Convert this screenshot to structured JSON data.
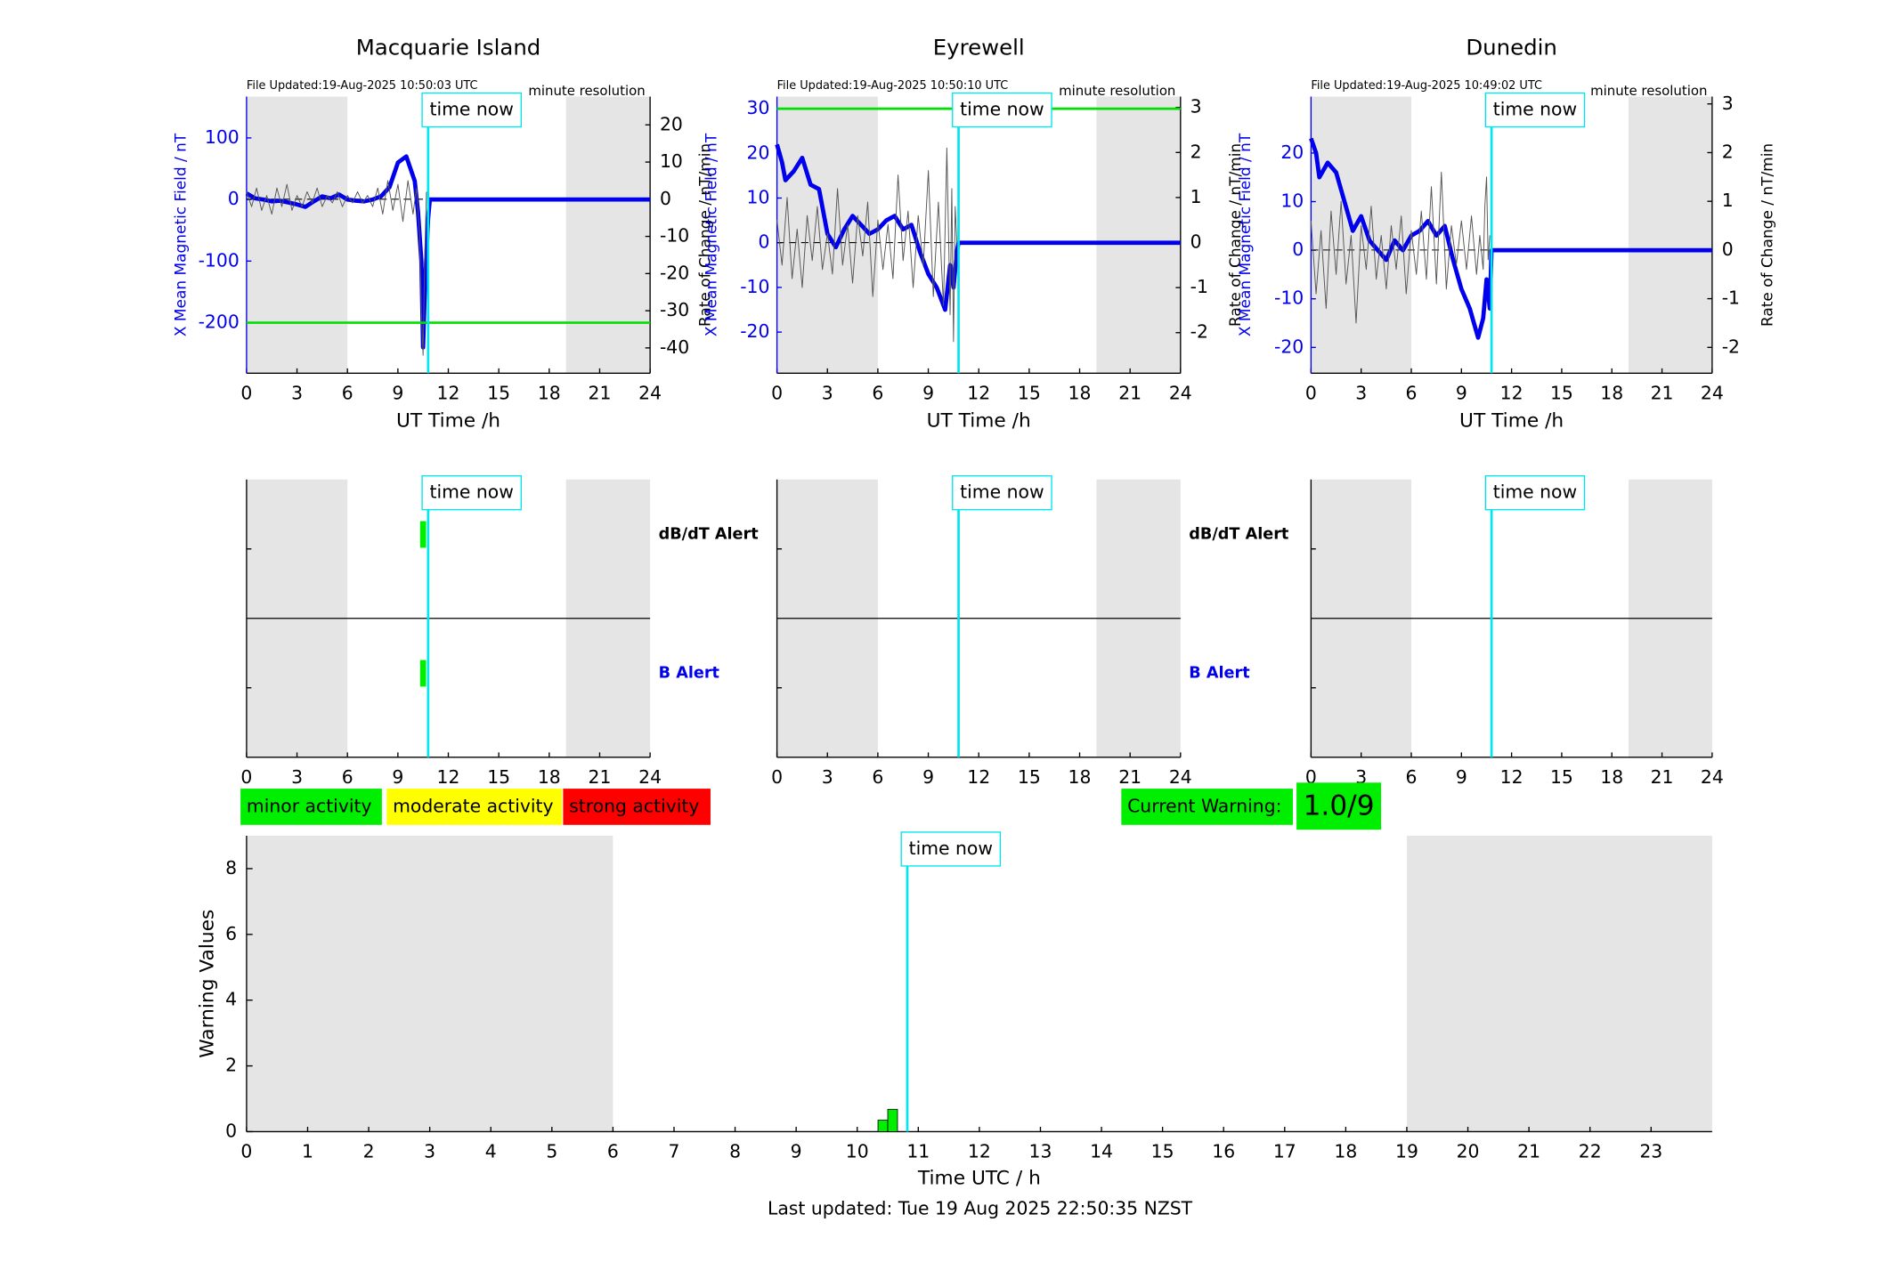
{
  "chart_data": [
    {
      "type": "line",
      "title": "Macquarie Island",
      "file_updated": "File Updated:19-Aug-2025 10:50:03 UTC",
      "resolution": "minute resolution",
      "ylabel": "X Mean Magnetic Field / nT",
      "y2label": "Rate of Change / nT/min",
      "xlabel": "UT Time /h",
      "xlim": [
        0,
        24
      ],
      "xticks": [
        0,
        3,
        6,
        9,
        12,
        15,
        18,
        21,
        24
      ],
      "ylim": [
        -282,
        167
      ],
      "yticks": [
        -200,
        -100,
        0,
        100
      ],
      "y2lim": [
        -46.8,
        27.6
      ],
      "y2ticks": [
        -40,
        -30,
        -20,
        -10,
        0,
        10,
        20
      ],
      "shade": [
        [
          0,
          6
        ],
        [
          19,
          24
        ]
      ],
      "threshold": -200,
      "threshold_color": "#00e000",
      "time_now": 10.8,
      "time_now_label": "time now",
      "series": [
        {
          "color": "#0000ee",
          "x": [
            0,
            0.5,
            1,
            1.5,
            2,
            2.5,
            3,
            3.5,
            4,
            4.5,
            5,
            5.5,
            6,
            6.5,
            7,
            7.5,
            8,
            8.5,
            9,
            9.5,
            10,
            10.2,
            10.4,
            10.5,
            10.6,
            10.8,
            10.9,
            24
          ],
          "values": [
            10,
            2,
            0,
            -3,
            -2,
            -5,
            -8,
            -12,
            -3,
            5,
            2,
            8,
            0,
            -2,
            -3,
            0,
            5,
            20,
            60,
            70,
            30,
            -20,
            -100,
            -240,
            -150,
            -30,
            0,
            0
          ]
        },
        {
          "color": "#555555",
          "axis": "y2",
          "x": [
            0,
            0.3,
            0.6,
            0.9,
            1.2,
            1.5,
            1.8,
            2.1,
            2.4,
            2.7,
            3,
            3.3,
            3.6,
            3.9,
            4.2,
            4.5,
            4.8,
            5.1,
            5.4,
            5.7,
            6,
            6.3,
            6.6,
            6.9,
            7.2,
            7.5,
            7.8,
            8.1,
            8.4,
            8.7,
            9,
            9.3,
            9.6,
            9.9,
            10.1,
            10.3,
            10.4,
            10.5,
            10.6,
            10.7
          ],
          "values": [
            2,
            -2,
            3,
            -3,
            1,
            -4,
            3,
            -2,
            4,
            -3,
            1,
            -2,
            2,
            -1,
            3,
            -2,
            1,
            -1,
            2,
            -2,
            1,
            -1,
            2,
            -1,
            1,
            -2,
            3,
            -4,
            5,
            -3,
            4,
            -6,
            5,
            -4,
            3,
            -10,
            -30,
            -42,
            -15,
            2
          ]
        }
      ]
    },
    {
      "type": "line",
      "title": "Eyrewell",
      "file_updated": "File Updated:19-Aug-2025 10:50:10 UTC",
      "resolution": "minute resolution",
      "ylabel": "X Mean Magnetic Field / nT",
      "y2label": "Rate of Change / nT/min",
      "xlabel": "UT Time /h",
      "xlim": [
        0,
        24
      ],
      "xticks": [
        0,
        3,
        6,
        9,
        12,
        15,
        18,
        21,
        24
      ],
      "ylim": [
        -29.2,
        32.7
      ],
      "yticks": [
        -20,
        -10,
        0,
        10,
        20,
        30
      ],
      "y2lim": [
        -2.9,
        3.24
      ],
      "y2ticks": [
        -2,
        -1,
        0,
        1,
        2,
        3
      ],
      "shade": [
        [
          0,
          6
        ],
        [
          19,
          24
        ]
      ],
      "threshold": 30,
      "threshold_color": "#00e000",
      "time_now": 10.8,
      "time_now_label": "time now",
      "series": [
        {
          "color": "#0000ee",
          "x": [
            0,
            0.3,
            0.5,
            1,
            1.5,
            2,
            2.5,
            3,
            3.5,
            4,
            4.5,
            5,
            5.5,
            6,
            6.5,
            7,
            7.5,
            8,
            8.5,
            9,
            9.5,
            10,
            10.3,
            10.5,
            10.7,
            10.8,
            24
          ],
          "values": [
            22,
            18,
            14,
            16,
            19,
            13,
            12,
            2,
            -1,
            3,
            6,
            4,
            2,
            3,
            5,
            6,
            3,
            4,
            -2,
            -7,
            -10,
            -15,
            -5,
            -10,
            -2,
            0,
            0
          ]
        },
        {
          "color": "#555555",
          "axis": "y2",
          "x": [
            0,
            0.3,
            0.6,
            0.9,
            1.2,
            1.5,
            1.8,
            2.1,
            2.4,
            2.7,
            3,
            3.3,
            3.6,
            3.9,
            4.2,
            4.5,
            4.8,
            5.1,
            5.4,
            5.7,
            6,
            6.3,
            6.6,
            6.9,
            7.2,
            7.5,
            7.8,
            8.1,
            8.4,
            8.7,
            9,
            9.3,
            9.6,
            9.9,
            10.1,
            10.3,
            10.4,
            10.5,
            10.6,
            10.7
          ],
          "values": [
            0.5,
            -0.5,
            1,
            -0.8,
            0.3,
            -1,
            0.6,
            -0.4,
            0.8,
            -0.6,
            0.2,
            -0.7,
            1.2,
            -0.5,
            0.4,
            -0.9,
            0.6,
            -0.3,
            0.9,
            -1.2,
            0.5,
            -0.6,
            0.4,
            -0.8,
            1.5,
            -0.4,
            0.7,
            -1,
            0.6,
            -0.5,
            1.6,
            -1.2,
            0.9,
            -1.4,
            2.1,
            -1.6,
            1.2,
            -2.2,
            0.8,
            0
          ]
        }
      ]
    },
    {
      "type": "line",
      "title": "Dunedin",
      "file_updated": "File Updated:19-Aug-2025 10:49:02 UTC",
      "resolution": "minute resolution",
      "ylabel": "X Mean Magnetic Field / nT",
      "y2label": "Rate of Change / nT/min",
      "xlabel": "UT Time /h",
      "xlim": [
        0,
        24
      ],
      "xticks": [
        0,
        3,
        6,
        9,
        12,
        15,
        18,
        21,
        24
      ],
      "ylim": [
        -25.3,
        31.6
      ],
      "yticks": [
        -20,
        -10,
        0,
        10,
        20
      ],
      "y2lim": [
        -2.53,
        3.15
      ],
      "y2ticks": [
        -2,
        -1,
        0,
        1,
        2,
        3
      ],
      "shade": [
        [
          0,
          6
        ],
        [
          19,
          24
        ]
      ],
      "time_now": 10.8,
      "time_now_label": "time now",
      "series": [
        {
          "color": "#0000ee",
          "x": [
            0,
            0.3,
            0.5,
            1,
            1.5,
            2,
            2.5,
            3,
            3.5,
            4,
            4.5,
            5,
            5.5,
            6,
            6.5,
            7,
            7.5,
            8,
            8.5,
            9,
            9.5,
            10,
            10.3,
            10.5,
            10.7,
            10.8,
            24
          ],
          "values": [
            23,
            20,
            15,
            18,
            16,
            10,
            4,
            7,
            2,
            0,
            -2,
            2,
            0,
            3,
            4,
            6,
            3,
            5,
            -2,
            -8,
            -12,
            -18,
            -14,
            -6,
            -12,
            0,
            0
          ]
        },
        {
          "color": "#555555",
          "axis": "y2",
          "x": [
            0,
            0.3,
            0.6,
            0.9,
            1.2,
            1.5,
            1.8,
            2.1,
            2.4,
            2.7,
            3,
            3.3,
            3.6,
            3.9,
            4.2,
            4.5,
            4.8,
            5.1,
            5.4,
            5.7,
            6,
            6.3,
            6.6,
            6.9,
            7.2,
            7.5,
            7.8,
            8.1,
            8.4,
            8.7,
            9,
            9.3,
            9.6,
            9.9,
            10.1,
            10.3,
            10.4,
            10.5,
            10.6,
            10.7
          ],
          "values": [
            0.6,
            -0.9,
            0.4,
            -1.2,
            0.8,
            -0.5,
            1,
            -0.7,
            0.3,
            -1.5,
            0.5,
            -0.4,
            0.9,
            -0.6,
            0.3,
            -0.8,
            0.5,
            -0.4,
            0.7,
            -0.9,
            0.4,
            -0.5,
            0.8,
            -0.6,
            1.3,
            -0.7,
            1.6,
            -0.8,
            0.5,
            -0.3,
            0.6,
            -0.4,
            0.7,
            -0.5,
            0.3,
            -0.4,
            0.9,
            1.5,
            -0.2,
            0.3
          ]
        }
      ]
    },
    {
      "type": "alert",
      "xlim": [
        0,
        24
      ],
      "xticks": [
        0,
        3,
        6,
        9,
        12,
        15,
        18,
        21,
        24
      ],
      "shade": [
        [
          0,
          6
        ],
        [
          19,
          24
        ]
      ],
      "time_now": 10.8,
      "time_now_label": "time now",
      "series": [
        {
          "name": "dB/dT Alert",
          "label_color": "#000000",
          "color": "#00ee00",
          "x": [
            10.5
          ]
        },
        {
          "name": "B Alert",
          "label_color": "#0000ee",
          "color": "#00ee00",
          "x": [
            10.5
          ]
        }
      ]
    },
    {
      "type": "alert",
      "xlim": [
        0,
        24
      ],
      "xticks": [
        0,
        3,
        6,
        9,
        12,
        15,
        18,
        21,
        24
      ],
      "shade": [
        [
          0,
          6
        ],
        [
          19,
          24
        ]
      ],
      "time_now": 10.8,
      "time_now_label": "time now",
      "series": [
        {
          "name": "dB/dT Alert",
          "label_color": "#000000",
          "color": "#00ee00",
          "x": []
        },
        {
          "name": "B Alert",
          "label_color": "#0000ee",
          "color": "#00ee00",
          "x": []
        }
      ]
    },
    {
      "type": "alert",
      "xlim": [
        0,
        24
      ],
      "xticks": [
        0,
        3,
        6,
        9,
        12,
        15,
        18,
        21,
        24
      ],
      "shade": [
        [
          0,
          6
        ],
        [
          19,
          24
        ]
      ],
      "time_now": 10.8,
      "time_now_label": "time now",
      "series": []
    },
    {
      "type": "bar",
      "xlabel": "Time UTC / h",
      "ylabel": "Warning Values",
      "xlim": [
        0,
        24
      ],
      "xticks": [
        0,
        1,
        2,
        3,
        4,
        5,
        6,
        7,
        8,
        9,
        10,
        11,
        12,
        13,
        14,
        15,
        16,
        17,
        18,
        19,
        20,
        21,
        22,
        23
      ],
      "ylim": [
        0,
        9
      ],
      "yticks": [
        0,
        2,
        4,
        6,
        8
      ],
      "shade": [
        [
          0,
          6
        ],
        [
          19,
          24
        ]
      ],
      "time_now": 10.82,
      "time_now_label": "time now",
      "x": [
        10.42,
        10.58
      ],
      "values": [
        0.35,
        0.68
      ],
      "color": "#00ee00"
    }
  ],
  "legend": [
    {
      "label": "minor activity",
      "color": "#00ee00"
    },
    {
      "label": "moderate activity",
      "color": "#ffff00"
    },
    {
      "label": "strong activity",
      "color": "#ff0000"
    }
  ],
  "current_warning": {
    "label": "Current Warning:",
    "value": "1.0/9",
    "color": "#00ee00"
  },
  "footer": "Last updated: Tue 19 Aug 2025 22:50:35 NZST"
}
